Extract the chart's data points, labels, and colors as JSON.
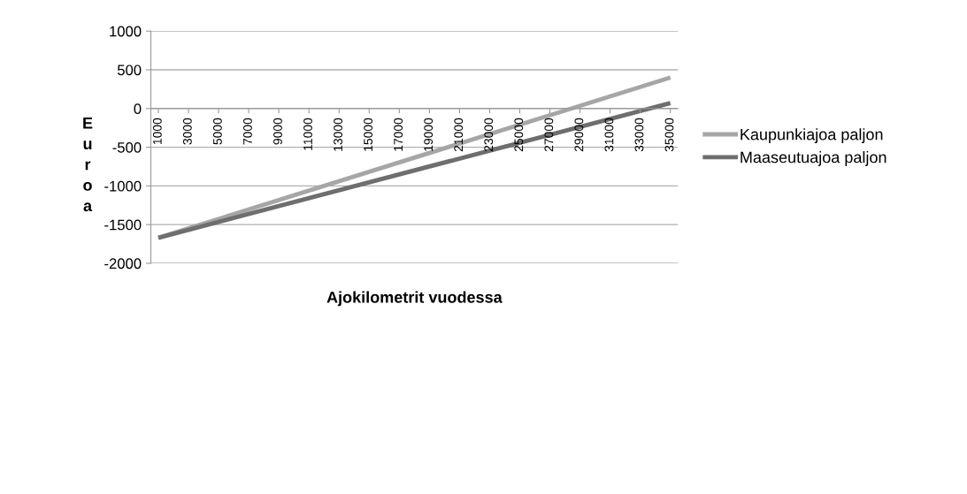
{
  "chart_data": {
    "type": "line",
    "xlabel": "Ajokilometrit vuodessa",
    "ylabel": "Euroa",
    "x": [
      1000,
      35000
    ],
    "series": [
      {
        "name": "Kaupunkiajoa paljon",
        "color": "#a6a6a6",
        "values": [
          -1670,
          400
        ]
      },
      {
        "name": "Maaseutuajoa paljon",
        "color": "#6e6e6e",
        "values": [
          -1670,
          70
        ]
      }
    ],
    "xlim": [
      500,
      35500
    ],
    "xticks": [
      1000,
      3000,
      5000,
      7000,
      9000,
      11000,
      13000,
      15000,
      17000,
      19000,
      21000,
      23000,
      25000,
      27000,
      29000,
      31000,
      33000,
      35000
    ],
    "ylim": [
      -2000,
      1000
    ],
    "yticks": [
      -2000,
      -1500,
      -1000,
      -500,
      0,
      500,
      1000
    ],
    "grid": "y",
    "legend": "right",
    "marker": "none",
    "line_style": "solid"
  }
}
